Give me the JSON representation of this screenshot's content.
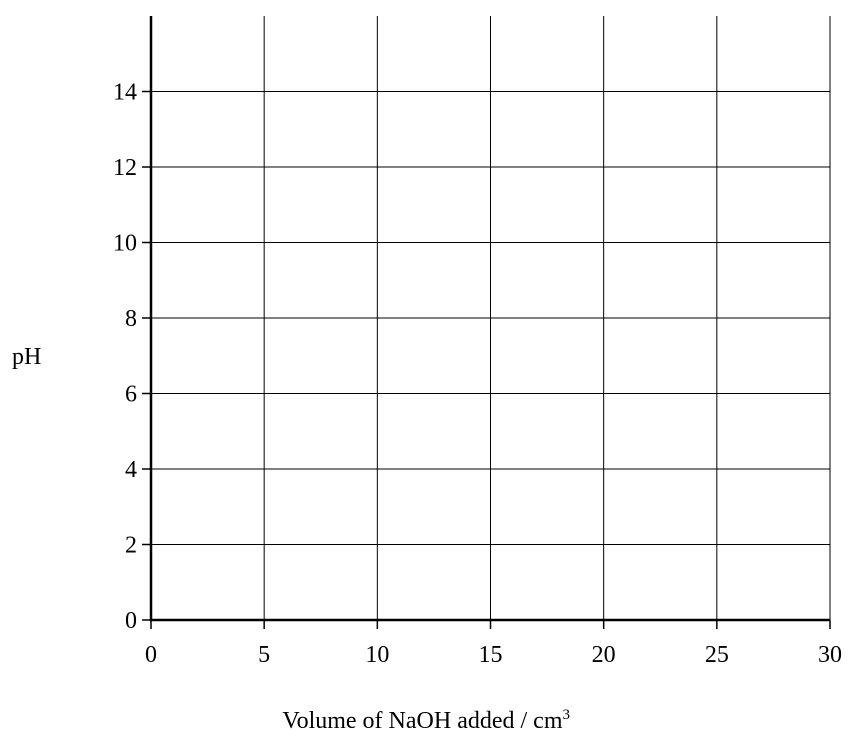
{
  "chart_data": {
    "type": "line",
    "title": "",
    "xlabel": "Volume of NaOH added / cm",
    "xlabel_superscript": "3",
    "ylabel": "pH",
    "xlim": [
      0,
      30
    ],
    "ylim": [
      0,
      16
    ],
    "x_ticks": [
      0,
      5,
      10,
      15,
      20,
      25,
      30
    ],
    "y_ticks": [
      0,
      2,
      4,
      6,
      8,
      10,
      12,
      14
    ],
    "x_tick_labels": [
      "0",
      "5",
      "10",
      "15",
      "20",
      "25",
      "30"
    ],
    "y_tick_labels": [
      "0",
      "2",
      "4",
      "6",
      "8",
      "10",
      "12",
      "14"
    ],
    "grid": true,
    "series": []
  }
}
